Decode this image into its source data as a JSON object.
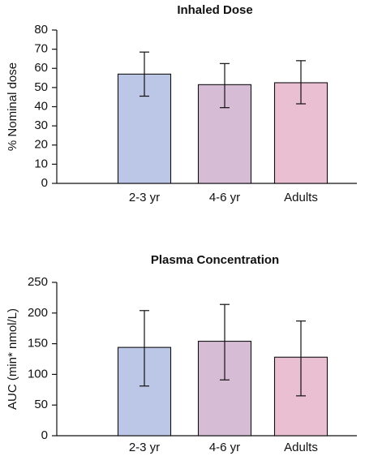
{
  "chart_data": [
    {
      "type": "bar",
      "title": "Inhaled Dose",
      "ylabel": "% Nominal dose",
      "xlabel": "",
      "categories": [
        "2-3 yr",
        "4-6 yr",
        "Adults"
      ],
      "values": [
        57,
        51.5,
        52.5
      ],
      "error_upper": [
        68.5,
        62.5,
        64
      ],
      "error_lower": [
        45.5,
        39.5,
        41.5
      ],
      "ylim": [
        0,
        80
      ],
      "yticks": [
        0,
        10,
        20,
        30,
        40,
        50,
        60,
        70,
        80
      ],
      "colors": [
        "#bcc6e6",
        "#d7bcd6",
        "#ebbfd2"
      ],
      "grid": false
    },
    {
      "type": "bar",
      "title": "Plasma Concentration",
      "ylabel": "AUC (min* nmol/L)",
      "xlabel": "",
      "categories": [
        "2-3 yr",
        "4-6 yr",
        "Adults"
      ],
      "values": [
        144,
        154,
        128
      ],
      "error_upper": [
        204,
        214,
        187
      ],
      "error_lower": [
        81,
        91,
        65
      ],
      "ylim": [
        0,
        250
      ],
      "yticks": [
        0,
        50,
        100,
        150,
        200,
        250
      ],
      "colors": [
        "#bcc6e6",
        "#d7bcd6",
        "#ebbfd2"
      ],
      "grid": false
    }
  ]
}
